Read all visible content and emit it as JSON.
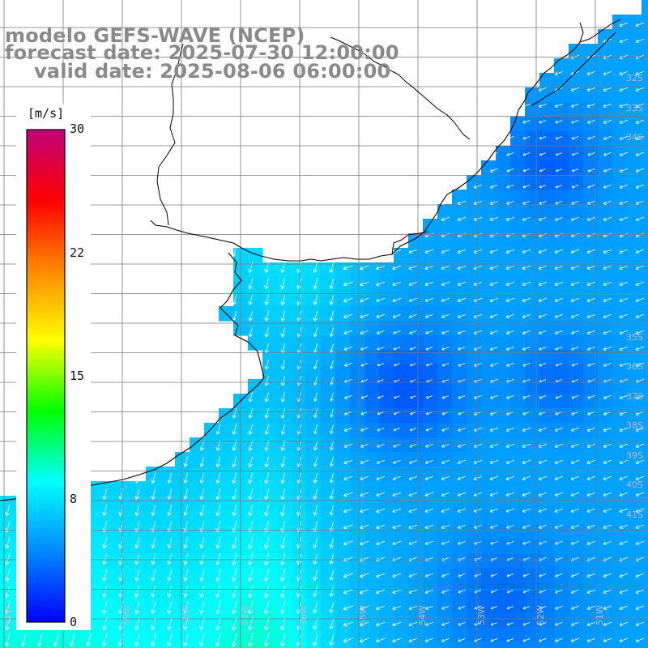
{
  "header": {
    "model": "modelo GEFS-WAVE (NCEP)",
    "forecast_date": "forecast date: 2025-07-30 12:00:00",
    "valid_date": "valid date: 2025-08-06 06:00:00"
  },
  "colorbar": {
    "unit": "[m/s]",
    "ticks": [
      "30",
      "22",
      "15",
      "8",
      "0"
    ],
    "tick_values": [
      30,
      22,
      15,
      8,
      0
    ],
    "range": [
      0,
      30
    ],
    "colors": [
      "#0000ff",
      "#0088ff",
      "#00ffff",
      "#00ff00",
      "#ffff00",
      "#ff8800",
      "#ff0000",
      "#c0007a"
    ]
  },
  "map": {
    "field": "wind speed",
    "lon_range_deg_west": [
      62,
      47
    ],
    "lat_range_deg_south": [
      29,
      42
    ],
    "grid_spacing_deg": 1,
    "lat_labels": [
      "32S",
      "33S",
      "34S",
      "35S",
      "36S",
      "37S",
      "38S",
      "39S",
      "40S",
      "41S"
    ],
    "lon_labels": [
      "61W",
      "60W",
      "59W",
      "58W",
      "57W",
      "56W",
      "55W",
      "54W",
      "53W",
      "52W",
      "51W",
      "50W",
      "49W",
      "48W"
    ],
    "land_color": "#ffffff",
    "coast_color": "#000000",
    "grid_color": "#7a7a7a",
    "arrow_color": "#ffffff"
  }
}
